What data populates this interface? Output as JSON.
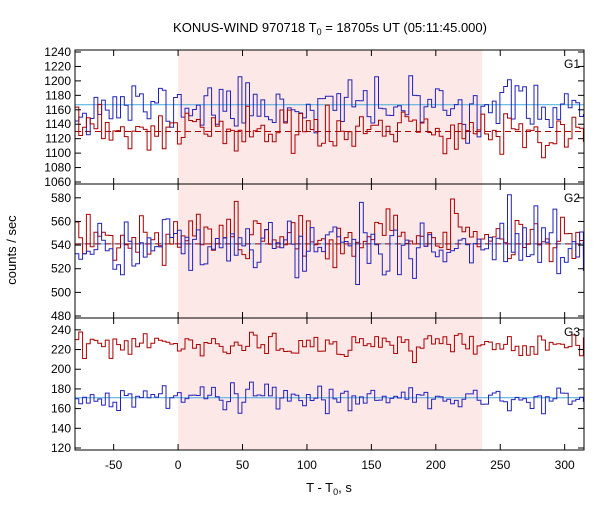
{
  "chart_data": {
    "type": "line",
    "title": {
      "main": "KONUS-WIND 970718 T",
      "sub": "0",
      "rest": " = 18705s UT (05:11:45.000)"
    },
    "xlabel": {
      "main": "T - T",
      "sub": "0",
      "rest": ", s"
    },
    "ylabel": "counts / sec",
    "x_range": [
      -80,
      315
    ],
    "x_ticks": [
      -50,
      0,
      50,
      100,
      150,
      200,
      250,
      300
    ],
    "shaded_interval": {
      "from": 0,
      "to": 236,
      "color": "#fde8e8"
    },
    "colors": {
      "red": "#aa0000",
      "blue": "#2222bb",
      "cyan": "#44aadd"
    },
    "panels": [
      {
        "label": "G1",
        "y_range": [
          1060,
          1240
        ],
        "y_ticks": [
          1060,
          1080,
          1100,
          1120,
          1140,
          1160,
          1180,
          1200,
          1220,
          1240
        ],
        "cyan_level": 1167,
        "dashed_level": 1130,
        "series": [
          {
            "color_key": "blue",
            "mean": 1165,
            "sd": 18,
            "seed": 11
          },
          {
            "color_key": "red",
            "mean": 1130,
            "sd": 17,
            "seed": 23
          }
        ]
      },
      {
        "label": "G2",
        "y_range": [
          480,
          590
        ],
        "y_ticks": [
          480,
          500,
          520,
          540,
          560,
          580
        ],
        "cyan_level": 541,
        "dashed_level": 541,
        "series": [
          {
            "color_key": "red",
            "mean": 548,
            "sd": 10,
            "seed": 37
          },
          {
            "color_key": "blue",
            "mean": 540,
            "sd": 13,
            "seed": 41
          }
        ]
      },
      {
        "label": "G3",
        "y_range": [
          120,
          250
        ],
        "y_ticks": [
          120,
          140,
          160,
          180,
          200,
          220,
          240
        ],
        "cyan_level": 171,
        "dashed_level": null,
        "series": [
          {
            "color_key": "red",
            "mean": 224,
            "sd": 6,
            "seed": 53
          },
          {
            "color_key": "blue",
            "mean": 171,
            "sd": 6,
            "seed": 67
          }
        ]
      }
    ],
    "bin_width_s": 2.944
  }
}
